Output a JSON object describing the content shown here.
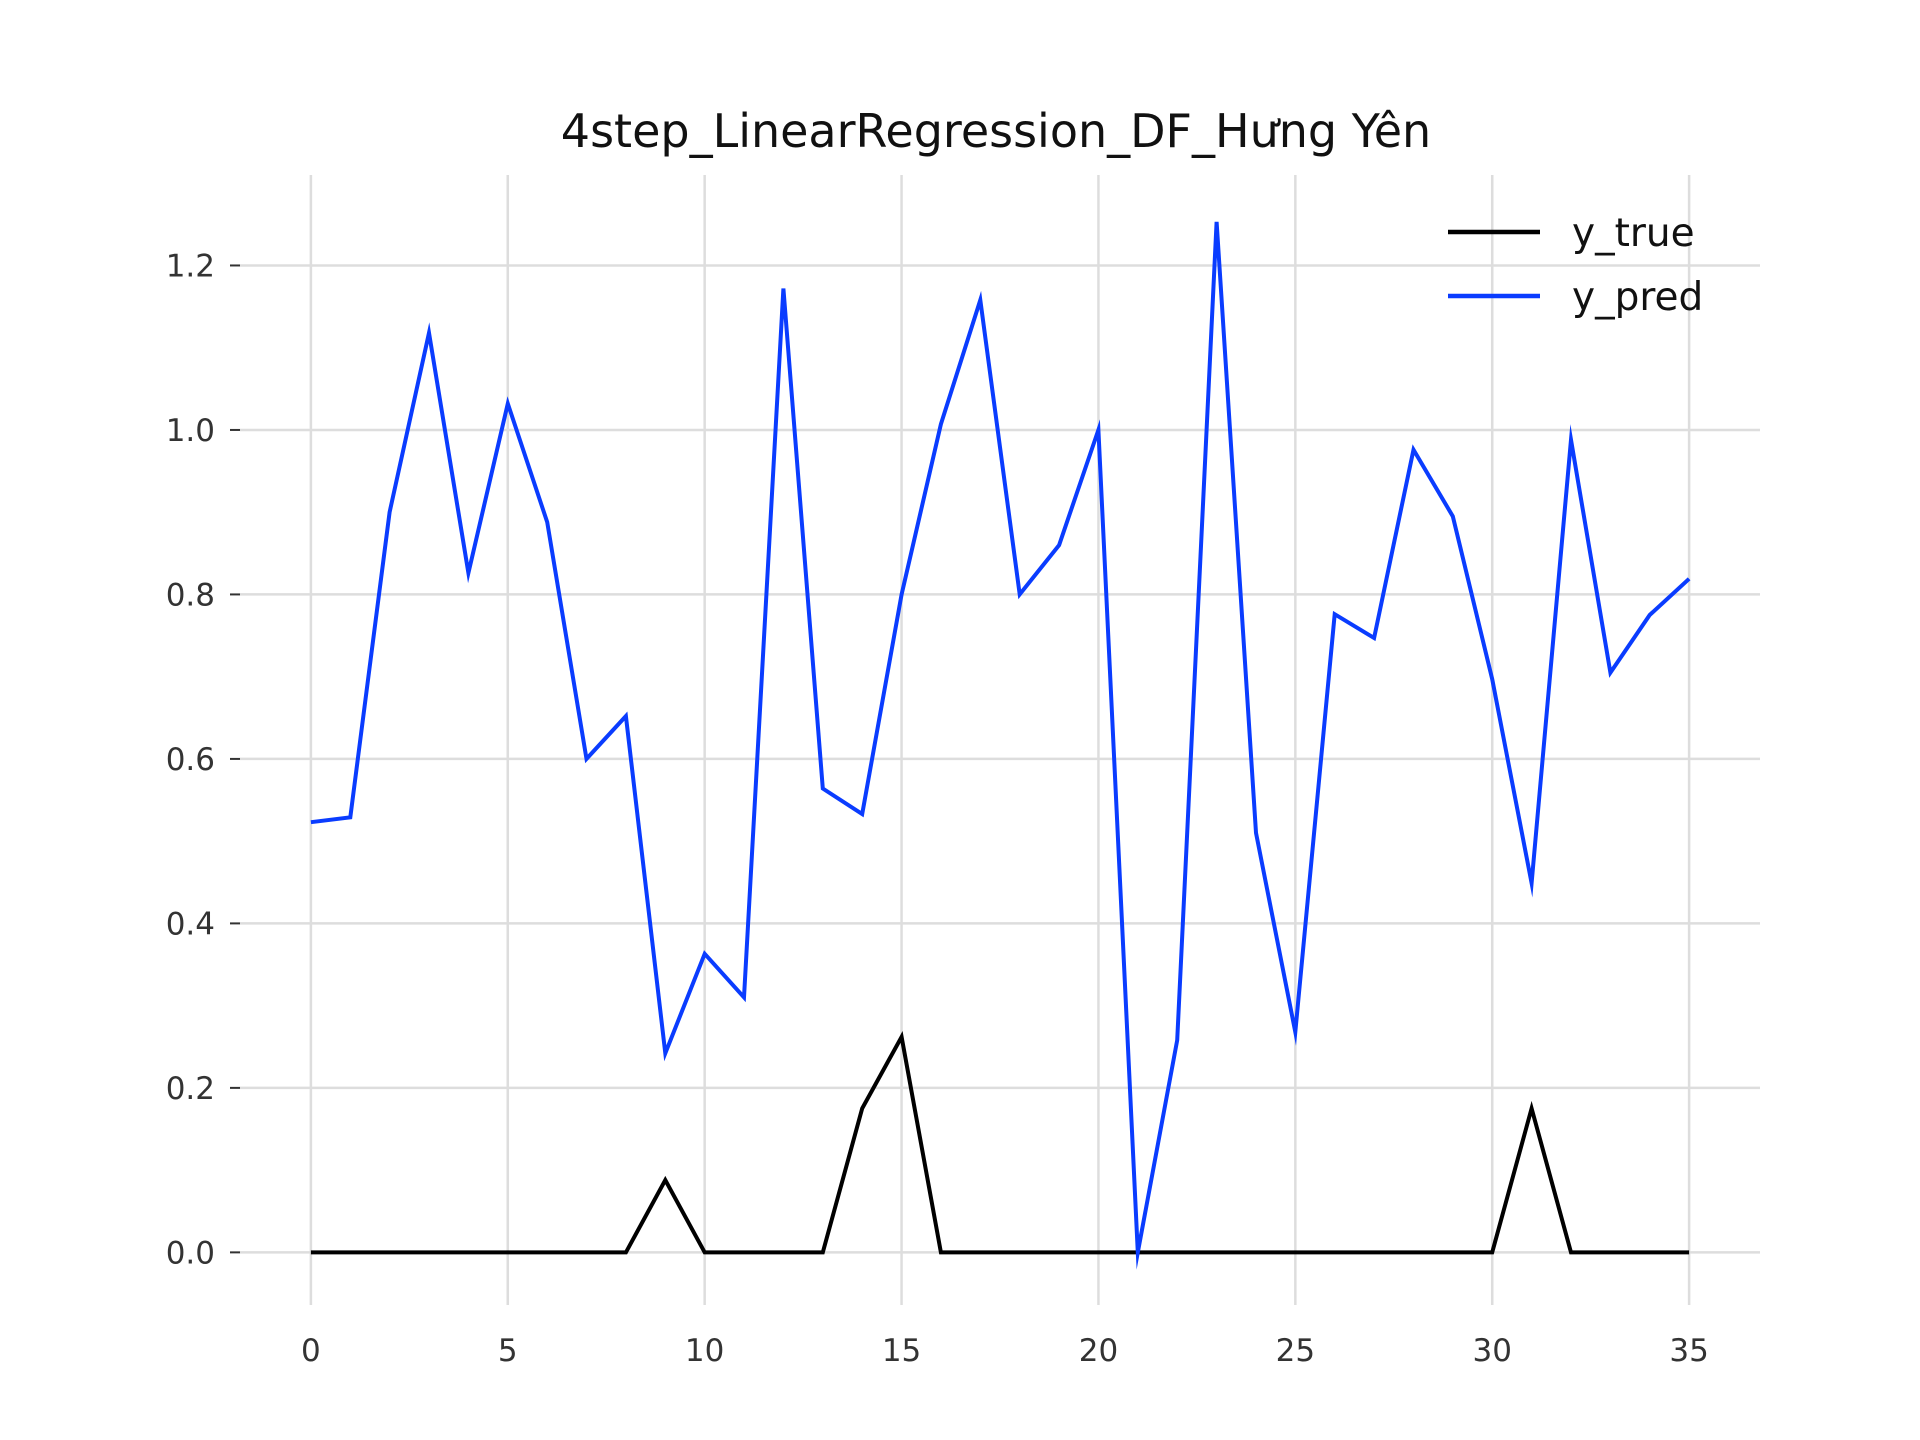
{
  "chart_data": {
    "type": "line",
    "title": "4step_LinearRegression_DF_Hưng Yên",
    "xlabel": "",
    "ylabel": "",
    "x": [
      0,
      1,
      2,
      3,
      4,
      5,
      6,
      7,
      8,
      9,
      10,
      11,
      12,
      13,
      14,
      15,
      16,
      17,
      18,
      19,
      20,
      21,
      22,
      23,
      24,
      25,
      26,
      27,
      28,
      29,
      30,
      31,
      32,
      33,
      34,
      35
    ],
    "xlim": [
      -1.8,
      36.8
    ],
    "ylim": [
      -0.064,
      1.31
    ],
    "x_ticks": [
      "0",
      "5",
      "10",
      "15",
      "20",
      "25",
      "30",
      "35"
    ],
    "y_ticks": [
      "0.0",
      "0.2",
      "0.4",
      "0.6",
      "0.8",
      "1.0",
      "1.2"
    ],
    "grid": true,
    "legend_position": "top-right",
    "series": [
      {
        "name": "y_true",
        "color": "#000000",
        "values": [
          0,
          0,
          0,
          0,
          0,
          0,
          0,
          0,
          0,
          0.088,
          0,
          0,
          0,
          0,
          0.175,
          0.262,
          0,
          0,
          0,
          0,
          0,
          0,
          0,
          0,
          0,
          0,
          0,
          0,
          0,
          0,
          0,
          0.175,
          0,
          0,
          0,
          0
        ]
      },
      {
        "name": "y_pred",
        "color": "#0a3cff",
        "values": [
          0.523,
          0.529,
          0.9,
          1.118,
          0.826,
          1.032,
          0.888,
          0.6,
          0.652,
          0.242,
          0.363,
          0.31,
          1.172,
          0.564,
          0.533,
          0.8,
          1.007,
          1.158,
          0.8,
          0.86,
          1.0,
          0.0,
          0.258,
          1.253,
          0.51,
          0.268,
          0.776,
          0.747,
          0.976,
          0.895,
          0.697,
          0.449,
          0.988,
          0.705,
          0.775,
          0.819
        ]
      }
    ]
  }
}
